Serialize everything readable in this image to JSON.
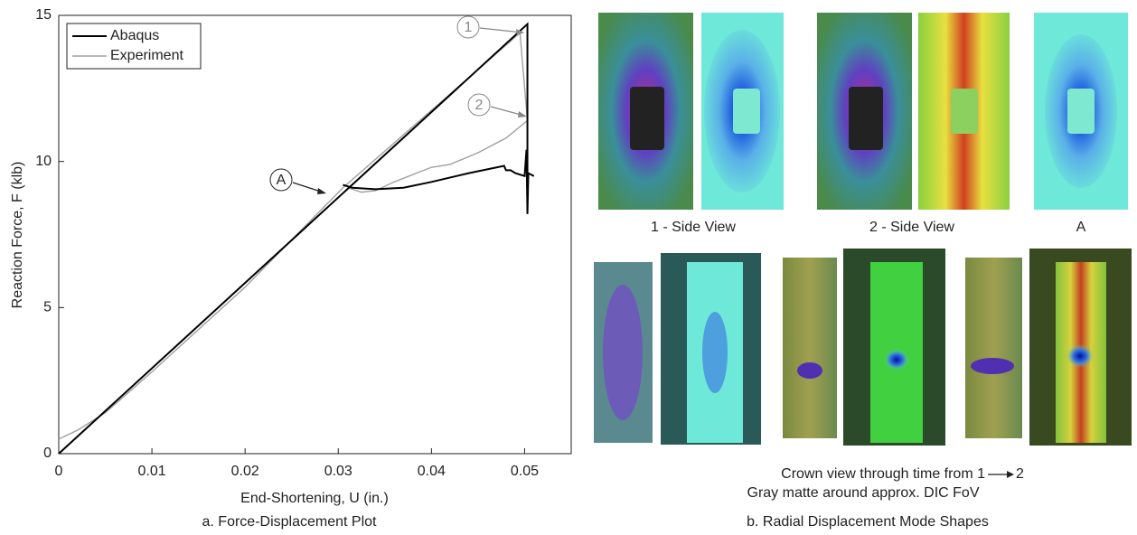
{
  "chart_data": {
    "type": "line",
    "caption": "a. Force-Displacement Plot",
    "x_label": "End-Shortening, U (in.)",
    "y_label": "Reaction Force, F (klb)",
    "xlim": [
      0,
      0.055
    ],
    "xticks": [
      0,
      0.01,
      0.02,
      0.03,
      0.04,
      0.05
    ],
    "ylim": [
      0,
      15
    ],
    "yticks": [
      0,
      5,
      10,
      15
    ],
    "legend": "upper left",
    "series": [
      {
        "name": "Abaqus",
        "color": "#000000",
        "x": [
          0,
          0.0503,
          0.0503,
          null,
          0.0305,
          0.0315,
          0.034,
          0.037,
          0.04,
          0.044,
          0.0478,
          0.048,
          0.0485,
          0.049,
          0.0495,
          0.05,
          0.0502,
          0.0503,
          0.0504,
          0.051
        ],
        "values": [
          0,
          14.7,
          8.2,
          null,
          9.2,
          9.1,
          9.05,
          9.1,
          9.3,
          9.6,
          9.85,
          9.7,
          9.7,
          9.6,
          9.55,
          9.5,
          10.4,
          8.2,
          9.6,
          9.5
        ]
      },
      {
        "name": "Experiment",
        "color": "#a0a0a0",
        "x": [
          0,
          0.002,
          0.005,
          0.01,
          0.02,
          0.0305,
          0.0495,
          0.0503,
          null,
          0.031,
          0.0325,
          0.034,
          0.036,
          0.04,
          0.042,
          0.045,
          0.048,
          0.0503
        ],
        "values": [
          0.5,
          0.8,
          1.4,
          2.8,
          5.7,
          9.1,
          14.4,
          11.4,
          null,
          9.1,
          8.95,
          9.0,
          9.3,
          9.8,
          9.9,
          10.3,
          10.8,
          11.4
        ]
      }
    ],
    "annotations": [
      "1",
      "2",
      "A"
    ]
  },
  "panel_b": {
    "side_captions": [
      "1 - Side View",
      "2 - Side View",
      "A"
    ],
    "crown_caption_start": "Crown view through time from 1",
    "crown_caption_end": "2",
    "crown_caption_line2": "Gray matte around approx. DIC FoV",
    "caption": "b. Radial Displacement Mode Shapes"
  }
}
